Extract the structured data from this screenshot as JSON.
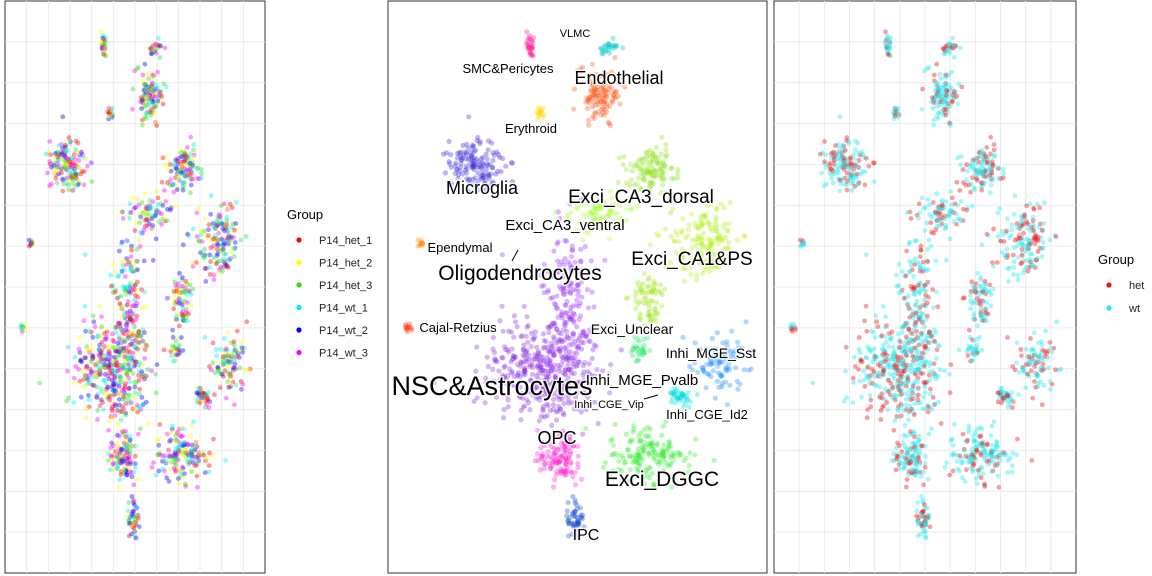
{
  "chart_data": [
    {
      "type": "scatter",
      "title": "",
      "xlabel": "",
      "ylabel": "",
      "grid": true,
      "legend": {
        "title": "Group",
        "position": "right",
        "entries": [
          {
            "label": "P14_het_1",
            "color": "#ff0000"
          },
          {
            "label": "P14_het_2",
            "color": "#ffff00"
          },
          {
            "label": "P14_het_3",
            "color": "#22e022"
          },
          {
            "label": "P14_wt_1",
            "color": "#00eeee"
          },
          {
            "label": "P14_wt_2",
            "color": "#0000ff"
          },
          {
            "label": "P14_wt_3",
            "color": "#ff00ff"
          }
        ]
      },
      "series": [
        {
          "name": "P14_het_1",
          "color": "#ff0000"
        },
        {
          "name": "P14_het_2",
          "color": "#ffff00"
        },
        {
          "name": "P14_het_3",
          "color": "#22e022"
        },
        {
          "name": "P14_wt_1",
          "color": "#00eeee"
        },
        {
          "name": "P14_wt_2",
          "color": "#0000ff"
        },
        {
          "name": "P14_wt_3",
          "color": "#ff00ff"
        }
      ]
    },
    {
      "type": "scatter",
      "title": "",
      "xlabel": "",
      "ylabel": "",
      "grid": false,
      "cluster_labels": [
        {
          "label": "VLMC"
        },
        {
          "label": "SMC&Pericytes"
        },
        {
          "label": "Endothelial"
        },
        {
          "label": "Erythroid"
        },
        {
          "label": "Microglia"
        },
        {
          "label": "Exci_CA3_dorsal"
        },
        {
          "label": "Exci_CA3_ventral"
        },
        {
          "label": "Ependymal"
        },
        {
          "label": "Exci_CA1&PS"
        },
        {
          "label": "Oligodendrocytes"
        },
        {
          "label": "Cajal-Retzius"
        },
        {
          "label": "Exci_Unclear"
        },
        {
          "label": "Inhi_MGE_Sst"
        },
        {
          "label": "NSC&Astrocytes"
        },
        {
          "label": "Inhi_MGE_Pvalb"
        },
        {
          "label": "Inhi_CGE_Vip"
        },
        {
          "label": "Inhi_CGE_Id2"
        },
        {
          "label": "OPC"
        },
        {
          "label": "Exci_DGGC"
        },
        {
          "label": "IPC"
        }
      ]
    },
    {
      "type": "scatter",
      "title": "",
      "xlabel": "",
      "ylabel": "",
      "grid": true,
      "legend": {
        "title": "Group",
        "position": "right",
        "entries": [
          {
            "label": "het",
            "color": "#ee1111"
          },
          {
            "label": "wt",
            "color": "#22e8f0"
          }
        ]
      },
      "series": [
        {
          "name": "het",
          "color": "#ee1111"
        },
        {
          "name": "wt",
          "color": "#22e8f0"
        }
      ]
    }
  ]
}
